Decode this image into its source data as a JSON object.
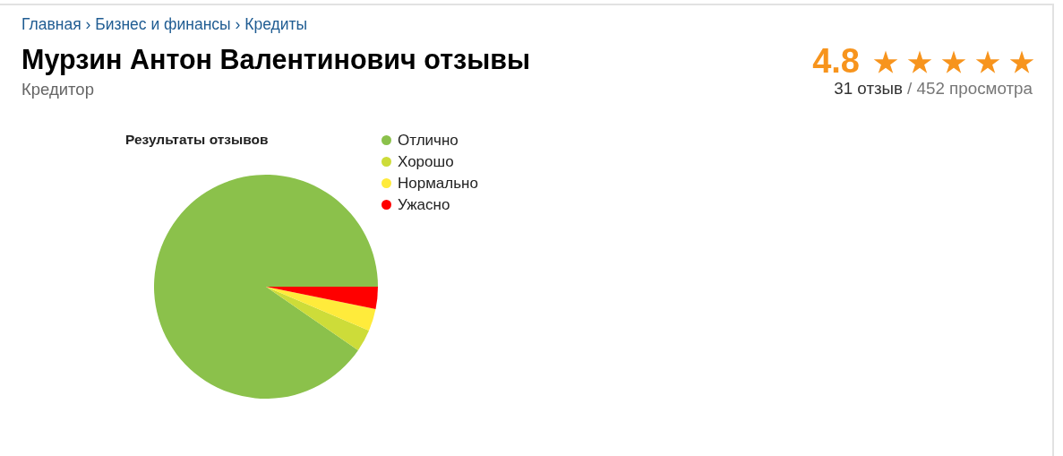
{
  "chart_data": {
    "type": "pie",
    "title": "Результаты отзывов",
    "categories": [
      "Отлично",
      "Хорошо",
      "Нормально",
      "Ужасно"
    ],
    "values": [
      90.4,
      3.2,
      3.2,
      3.2
    ],
    "colors": [
      "#8bc14b",
      "#cddc39",
      "#ffeb3b",
      "#ff0000"
    ],
    "legend": "top right",
    "annotations": [
      "Главная › Бизнес и финансы › Кредиты",
      "Мурзин Антон Валентинович отзывы",
      "Кредитор",
      "4.8",
      "31 отзыв",
      "/ 452 просмотра"
    ]
  }
}
